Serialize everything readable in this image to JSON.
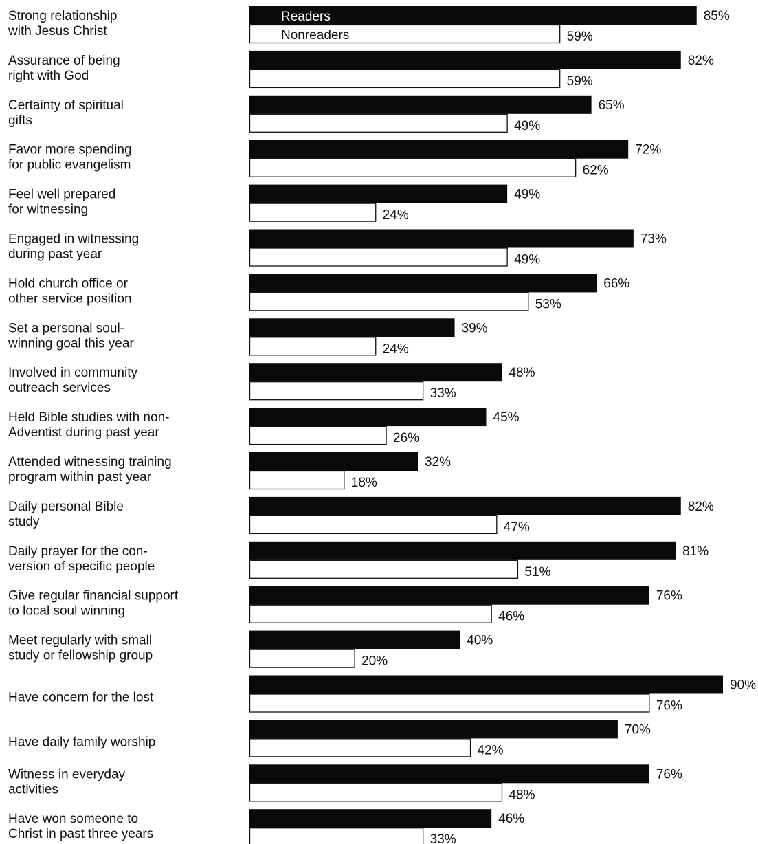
{
  "chart_data": {
    "type": "bar",
    "orientation": "horizontal",
    "grid": false,
    "legend_placement": "inside-first-bars",
    "colors": {
      "Readers": "#0a0a0a",
      "Nonreaders": "#ffffff",
      "outline": "#111111"
    },
    "categories": [
      [
        "Strong relationship",
        "with Jesus Christ"
      ],
      [
        "Assurance of being",
        "right with God"
      ],
      [
        "Certainty of spiritual",
        "gifts"
      ],
      [
        "Favor more spending",
        "for public evangelism"
      ],
      [
        "Feel well prepared",
        "for witnessing"
      ],
      [
        "Engaged in witnessing",
        "during past year"
      ],
      [
        "Hold church office or",
        "other service position"
      ],
      [
        "Set a personal soul-",
        "winning goal this year"
      ],
      [
        "Involved in community",
        "outreach services"
      ],
      [
        "Held Bible studies with non-",
        "Adventist during past year"
      ],
      [
        "Attended witnessing training",
        "program within past year"
      ],
      [
        "Daily personal Bible",
        "study"
      ],
      [
        "Daily prayer for the con-",
        "version of specific people"
      ],
      [
        "Give regular financial support",
        "to local soul winning"
      ],
      [
        "Meet regularly with small",
        "study or fellowship group"
      ],
      [
        "Have concern for the lost"
      ],
      [
        "Have daily family worship"
      ],
      [
        "Witness in everyday",
        "activities"
      ],
      [
        "Have won someone to",
        "Christ in past three years"
      ]
    ],
    "series": [
      {
        "name": "Readers",
        "values": [
          85,
          82,
          65,
          72,
          49,
          73,
          66,
          39,
          48,
          45,
          32,
          82,
          81,
          76,
          40,
          90,
          70,
          76,
          46
        ],
        "labels": [
          "85%",
          "82%",
          "65%",
          "72%",
          "49%",
          "73%",
          "66%",
          "39%",
          "48%",
          "45%",
          "32%",
          "82%",
          "81%",
          "76%",
          "40%",
          "90%",
          "70%",
          "76%",
          "46%"
        ]
      },
      {
        "name": "Nonreaders",
        "values": [
          59,
          59,
          49,
          62,
          24,
          49,
          53,
          24,
          33,
          26,
          18,
          47,
          51,
          46,
          20,
          76,
          42,
          48,
          33
        ],
        "labels": [
          "59%",
          "59%",
          "49%",
          "62%",
          "24%",
          "49%",
          "53%",
          "24%",
          "33%",
          "26%",
          "18%",
          "47%",
          "51%",
          "46%",
          "20%",
          "76%",
          "42%",
          "48%",
          "33%"
        ]
      }
    ],
    "xlim": [
      0,
      90
    ]
  }
}
